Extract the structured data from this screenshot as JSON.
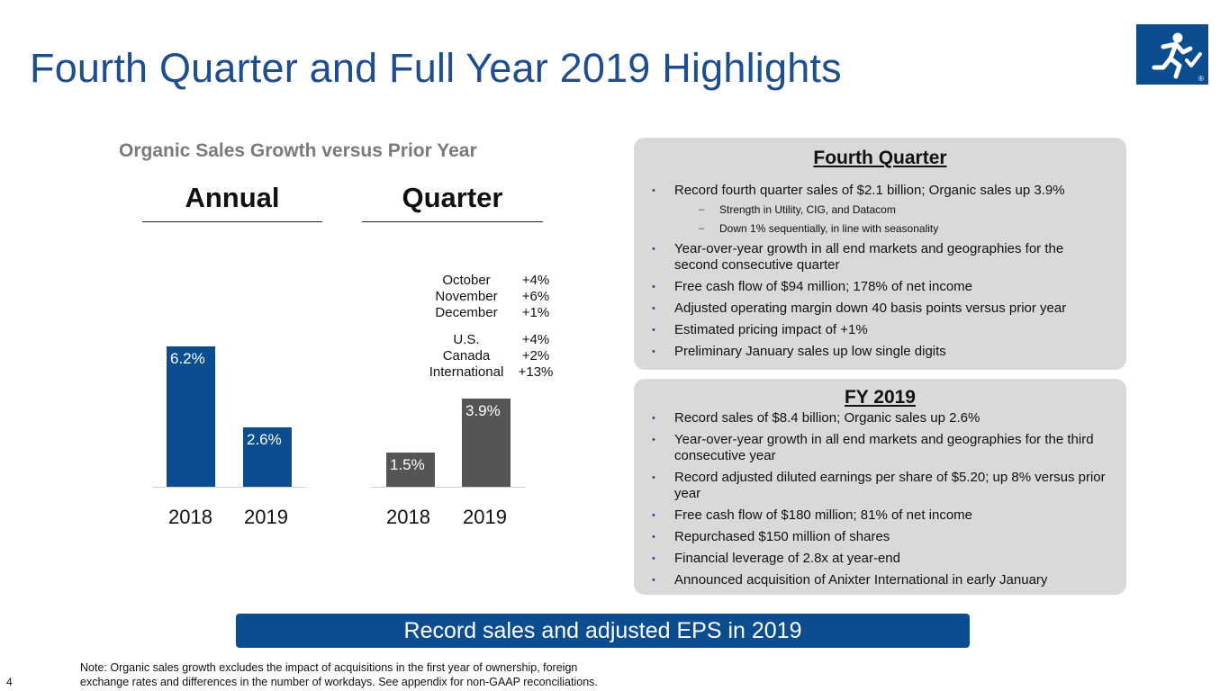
{
  "title": "Fourth Quarter and Full Year 2019 Highlights",
  "logo": {
    "icon": "running-man-check-icon",
    "mark": "®"
  },
  "chart_data": {
    "type": "bar",
    "title": "Organic Sales Growth versus Prior Year",
    "unit": "%",
    "groups": [
      {
        "name": "Annual",
        "categories": [
          "2018",
          "2019"
        ],
        "values": [
          6.2,
          2.6
        ],
        "labels": [
          "6.2%",
          "2.6%"
        ],
        "color": "#0b4d8f"
      },
      {
        "name": "Quarter",
        "categories": [
          "2018",
          "2019"
        ],
        "values": [
          1.5,
          3.9
        ],
        "labels": [
          "1.5%",
          "3.9%"
        ],
        "color": "#555555"
      }
    ],
    "ylim": [
      0,
      7
    ],
    "quarter_breakdown": {
      "months": [
        {
          "name": "October",
          "value": "+4%"
        },
        {
          "name": "November",
          "value": "+6%"
        },
        {
          "name": "December",
          "value": "+1%"
        }
      ],
      "regions": [
        {
          "name": "U.S.",
          "value": "+4%"
        },
        {
          "name": "Canada",
          "value": "+2%"
        },
        {
          "name": "International",
          "value": "+13%"
        }
      ]
    }
  },
  "fourth_quarter": {
    "title": "Fourth Quarter",
    "b1": "Record fourth quarter sales of $2.1 billion; Organic sales up 3.9%",
    "b1_sub1": "Strength in Utility, CIG, and Datacom",
    "b1_sub2": "Down 1% sequentially, in line with seasonality",
    "b2": "Year-over-year growth in all end markets and geographies for the second consecutive quarter",
    "b3": "Free cash flow of $94 million; 178% of net income",
    "b4": "Adjusted operating margin down 40 basis points versus prior year",
    "b5": "Estimated pricing impact of +1%",
    "b6": "Preliminary January sales up low single digits"
  },
  "fy2019": {
    "title": "FY 2019",
    "b1": "Record sales of $8.4 billion; Organic sales up 2.6%",
    "b2": "Year-over-year growth in all end markets and geographies for the third consecutive year",
    "b3": "Record adjusted diluted earnings per share of $5.20; up 8% versus prior year",
    "b4": "Free cash flow of $180 million; 81% of net income",
    "b5": "Repurchased $150 million of shares",
    "b6": "Financial leverage of 2.8x at year-end",
    "b7": "Announced acquisition of Anixter International in early January"
  },
  "bullet_char": "•",
  "dash_char": "–",
  "banner": "Record sales and adjusted EPS in 2019",
  "note_line1": "Note: Organic sales growth excludes the impact of acquisitions in the first year of ownership, foreign",
  "note_line2": "exchange rates and differences in the number of workdays.  See appendix for non-GAAP reconciliations.",
  "page_number": "4"
}
